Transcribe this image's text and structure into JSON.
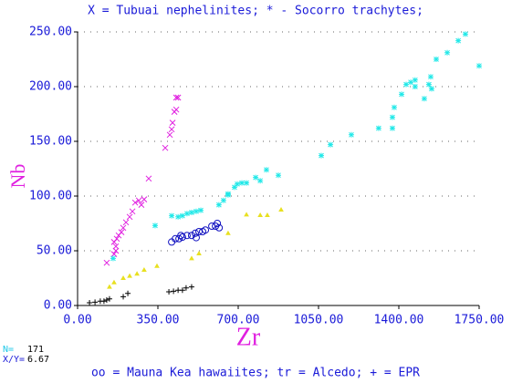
{
  "chart_data": {
    "type": "scatter",
    "title": "X = Tubuai nephelinites; * - Socorro trachytes;",
    "footer": "oo = Mauna Kea hawaiites; tr = Alcedo; + = EPR",
    "x_label": "Zr",
    "y_label": "Nb",
    "stats": {
      "n_label": "N=",
      "n": 171,
      "ratio_label": "X/Y=",
      "ratio": 6.67
    },
    "xlim": [
      0,
      1750
    ],
    "ylim": [
      0,
      250
    ],
    "xticks": [
      {
        "value": 0,
        "label": "0.00"
      },
      {
        "value": 350,
        "label": "350.00"
      },
      {
        "value": 700,
        "label": "700.00"
      },
      {
        "value": 1050,
        "label": "1050.00"
      },
      {
        "value": 1400,
        "label": "1400.00"
      },
      {
        "value": 1750,
        "label": "1750.00"
      }
    ],
    "yticks": [
      {
        "value": 0,
        "label": "0.00"
      },
      {
        "value": 50,
        "label": "50.00"
      },
      {
        "value": 100,
        "label": "100.00"
      },
      {
        "value": 150,
        "label": "150.00"
      },
      {
        "value": 200,
        "label": "200.00"
      },
      {
        "value": 250,
        "label": "250.00"
      }
    ],
    "grid": "y",
    "series": [
      {
        "color": "#e020e0",
        "marker": "x",
        "x": [
          127,
          159,
          167,
          159,
          171,
          179,
          191,
          199,
          211,
          227,
          239,
          251,
          267,
          278,
          290,
          310,
          382,
          402,
          414,
          422,
          430,
          430,
          438,
          410,
          167
        ],
        "values": [
          39,
          47,
          54,
          58,
          61,
          64,
          67,
          71,
          76,
          81,
          86,
          94,
          96,
          92,
          97,
          116,
          144,
          156,
          167,
          177,
          179,
          190,
          190,
          161,
          50
        ]
      },
      {
        "color": "#20e8e8",
        "marker": "*",
        "x": [
          155,
          338,
          410,
          438,
          457,
          477,
          497,
          517,
          537,
          636,
          656,
          684,
          696,
          716,
          736,
          776,
          796,
          823,
          875,
          1062,
          1102,
          1193,
          1312,
          1372,
          1380,
          1412,
          1432,
          1452,
          1471,
          1511,
          1531,
          1539,
          1543,
          1563,
          1611,
          1659,
          1690,
          1750,
          1471,
          1372,
          616,
          656
        ],
        "values": [
          43,
          73,
          82,
          81,
          82,
          84,
          85,
          86,
          87,
          96,
          101,
          108,
          111,
          112,
          112,
          117,
          114,
          124,
          119,
          137,
          147,
          156,
          162,
          162,
          181,
          193,
          202,
          204,
          200,
          189,
          202,
          209,
          198,
          225,
          231,
          242,
          248,
          219,
          206,
          172,
          92,
          102
        ]
      },
      {
        "color": "#1010c0",
        "marker": "o",
        "x": [
          410,
          426,
          442,
          457,
          477,
          497,
          513,
          529,
          545,
          557,
          585,
          601,
          609,
          617,
          450,
          517
        ],
        "values": [
          58,
          61,
          61,
          62.5,
          64,
          64,
          66,
          67.5,
          67.5,
          69,
          72.5,
          72.5,
          75,
          71,
          64,
          62
        ]
      },
      {
        "color": "#e8e020",
        "marker": "^",
        "x": [
          139,
          159,
          199,
          227,
          259,
          290,
          346,
          497,
          529,
          656,
          736,
          796,
          827,
          887
        ],
        "values": [
          17,
          21,
          25,
          27,
          29,
          32.5,
          36,
          43,
          47.5,
          66,
          83,
          82.5,
          82.5,
          87.5
        ]
      },
      {
        "color": "#000000",
        "marker": "+",
        "x": [
          52,
          76,
          99,
          115,
          127,
          139,
          199,
          219,
          398,
          418,
          438,
          457,
          473,
          497
        ],
        "values": [
          2.5,
          3,
          4,
          4,
          5,
          6,
          8,
          11,
          12.5,
          13,
          14,
          14,
          16,
          17
        ]
      }
    ]
  }
}
